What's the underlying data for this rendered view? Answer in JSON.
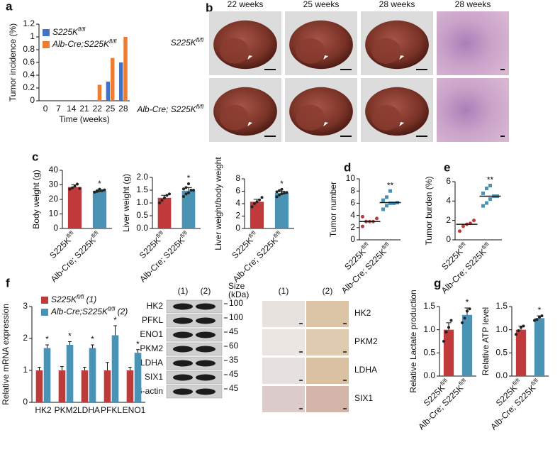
{
  "panels": [
    "a",
    "b",
    "c",
    "d",
    "e",
    "f",
    "g"
  ],
  "photos": {
    "columns": [
      "22 weeks",
      "25 weeks",
      "28 weeks",
      "28 weeks"
    ],
    "rows": [
      "S225Kfl/fl",
      "Alb-Cre; S225Kfl/fl"
    ]
  },
  "western": {
    "lanes": [
      "(1)",
      "(2)"
    ],
    "size_header": [
      "Size",
      "(kDa)"
    ],
    "bands": [
      {
        "name": "HK2",
        "size": 100
      },
      {
        "name": "PFKL",
        "size": 100
      },
      {
        "name": "ENO1",
        "size": 45
      },
      {
        "name": "PKM2",
        "size": 60
      },
      {
        "name": "LDHA",
        "size": 35
      },
      {
        "name": "SIX1",
        "size": 45
      },
      {
        "name": "β-actin",
        "size": 45
      }
    ]
  },
  "ihc": {
    "columns": [
      "(1)",
      "(2)"
    ],
    "rows": [
      "HK2",
      "PKM2",
      "LDHA",
      "SIX1"
    ]
  },
  "chart_data": [
    {
      "type": "bar",
      "ylabel": "Tumor incidence (%)",
      "xlabel": "Time (weeks)",
      "legend": "upper left",
      "categories": [
        "0",
        "7",
        "14",
        "21",
        "22",
        "25",
        "28"
      ],
      "series": [
        {
          "name": "S225Kfl/fl",
          "color": "#4472c4",
          "values": [
            0,
            0,
            0,
            0,
            0,
            0.3,
            0.6
          ]
        },
        {
          "name": "Alb-Cre;S225Kfl/fl",
          "color": "#ed7d31",
          "values": [
            0,
            0,
            0,
            0,
            0.25,
            0.67,
            1
          ]
        }
      ],
      "ylim": [
        0,
        1.2
      ],
      "yticks": [
        0,
        0.2,
        0.4,
        0.6,
        0.8,
        1,
        1.2
      ]
    },
    {
      "type": "bar",
      "ylabel": "Body weight (g)",
      "categories": [
        "S225Kfl/fl",
        "Alb-Cre; S225Kfl/fl"
      ],
      "colors": [
        "#c0393b",
        "#4a93b4"
      ],
      "values": [
        28.5,
        25.8
      ],
      "errors": [
        1.5,
        0.8
      ],
      "points": [
        [
          27,
          28,
          29,
          30.5,
          27.5
        ],
        [
          25,
          25.5,
          26,
          26,
          26.5,
          25,
          25.8,
          27
        ]
      ],
      "significance": [
        {
          "category": 1,
          "text": "*"
        }
      ],
      "ylim": [
        0,
        40
      ],
      "yticks": [
        0,
        10,
        20,
        30,
        40
      ]
    },
    {
      "type": "bar",
      "ylabel": "Liver weight (g)",
      "categories": [
        "S225Kfl/fl",
        "Alb-Cre; S225Kfl/fl"
      ],
      "colors": [
        "#c0393b",
        "#4a93b4"
      ],
      "values": [
        1.2,
        1.48
      ],
      "errors": [
        0.1,
        0.12
      ],
      "points": [
        [
          1.0,
          1.1,
          1.2,
          1.3,
          1.35
        ],
        [
          1.25,
          1.35,
          1.4,
          1.5,
          1.5,
          1.55,
          1.6,
          1.75
        ]
      ],
      "significance": [
        {
          "category": 1,
          "text": "*"
        }
      ],
      "ylim": [
        0,
        2
      ],
      "yticks": [
        {
          "value": 0,
          "label": "0.0"
        },
        {
          "value": 0.5,
          "label": "0.5"
        },
        {
          "value": 1,
          "label": "1.0"
        },
        {
          "value": 1.5,
          "label": "1.5"
        },
        {
          "value": 2,
          "label": "2.0"
        }
      ]
    },
    {
      "type": "bar",
      "ylabel": "Liver weight/body weight",
      "categories": [
        "S225Kfl/fl",
        "Alb-Cre; S225Kfl/fl"
      ],
      "colors": [
        "#c0393b",
        "#4a93b4"
      ],
      "values": [
        4.3,
        5.7
      ],
      "errors": [
        0.4,
        0.3
      ],
      "points": [
        [
          3.5,
          4,
          4.3,
          4.6,
          5
        ],
        [
          5.1,
          5.4,
          5.6,
          5.7,
          5.8,
          5.9,
          6.1,
          6.3
        ]
      ],
      "significance": [
        {
          "category": 1,
          "text": "*"
        }
      ],
      "ylim": [
        0,
        8
      ],
      "yticks": [
        0,
        2,
        4,
        6,
        8
      ]
    },
    {
      "type": "strip",
      "ylabel": "Tumor number",
      "categories": [
        "S225Kfl/fl",
        "Alb-Cre; S225Kfl/fl"
      ],
      "colors": [
        "#c0393b",
        "#4a93b4"
      ],
      "means": [
        3,
        6.1
      ],
      "points": [
        [
          2.2,
          3,
          3,
          3,
          3.5,
          3.8
        ],
        [
          5,
          5.6,
          6,
          6,
          6.1,
          6.5,
          7,
          8
        ]
      ],
      "significance": [
        {
          "category": 1,
          "text": "**"
        }
      ],
      "ylim": [
        0,
        10
      ],
      "yticks": [
        0,
        2,
        4,
        6,
        8,
        10
      ]
    },
    {
      "type": "strip",
      "ylabel": "Tumor burden (%)",
      "categories": [
        "S225Kfl/fl",
        "Alb-Cre; S225Kfl/fl"
      ],
      "colors": [
        "#c0393b",
        "#4a93b4"
      ],
      "means": [
        1.6,
        4.5
      ],
      "points": [
        [
          0.9,
          1.4,
          1.6,
          1.7,
          2.0
        ],
        [
          3.5,
          3.8,
          4.2,
          4.5,
          4.5,
          4.8,
          5.3,
          5.6
        ]
      ],
      "significance": [
        {
          "category": 1,
          "text": "**"
        }
      ],
      "ylim": [
        0,
        6
      ],
      "yticks": [
        0,
        2,
        4,
        6
      ]
    },
    {
      "type": "bar",
      "ylabel": "Relative mRNA expression",
      "legend": "upper left",
      "categories": [
        "HK2",
        "PKM2",
        "LDHA",
        "PFKL",
        "ENO1"
      ],
      "series": [
        {
          "name": "S225Kfl/fl (1)",
          "color": "#c0393b",
          "values": [
            1,
            1,
            1,
            1,
            1
          ],
          "errors": [
            0.1,
            0.12,
            0.1,
            0.25,
            0.1
          ]
        },
        {
          "name": "Alb-Cre;S225Kfl/fl (2)",
          "color": "#4a93b4",
          "values": [
            1.7,
            1.8,
            1.7,
            2.1,
            1.55
          ],
          "errors": [
            0.1,
            0.1,
            0.1,
            0.3,
            0.1
          ]
        }
      ],
      "significance": [
        {
          "category": 0,
          "text": "*"
        },
        {
          "category": 1,
          "text": "*"
        },
        {
          "category": 2,
          "text": "*"
        },
        {
          "category": 3,
          "text": "*"
        },
        {
          "category": 4,
          "text": "*"
        }
      ],
      "ylim": [
        0,
        3
      ],
      "yticks": [
        0,
        1,
        2,
        3
      ]
    },
    {
      "type": "bar",
      "ylabel": "Relative Lactate production",
      "categories": [
        "S225Kfl/fl",
        "Alb-Cre; S225Kfl/fl"
      ],
      "colors": [
        "#c0393b",
        "#4a93b4"
      ],
      "values": [
        1.0,
        1.32
      ],
      "errors": [
        0.15,
        0.15
      ],
      "points": [
        [
          0.75,
          0.95,
          1.05,
          1.2
        ],
        [
          1.15,
          1.25,
          1.4,
          1.45
        ]
      ],
      "significance": [
        {
          "category": 1,
          "text": "*"
        }
      ],
      "ylim": [
        0,
        1.5
      ],
      "yticks": [
        {
          "value": 0,
          "label": "0.0"
        },
        {
          "value": 0.5,
          "label": "0.5"
        },
        {
          "value": 1,
          "label": "1.0"
        },
        {
          "value": 1.5,
          "label": "1.5"
        }
      ]
    },
    {
      "type": "bar",
      "ylabel": "Relative ATP level",
      "categories": [
        "S225Kfl/fl",
        "Alb-Cre; S225Kfl/fl"
      ],
      "colors": [
        "#c0393b",
        "#4a93b4"
      ],
      "values": [
        1.0,
        1.25
      ],
      "errors": [
        0.08,
        0.05
      ],
      "points": [
        [
          0.9,
          0.98,
          1.05,
          1.08
        ],
        [
          1.2,
          1.22,
          1.27,
          1.3
        ]
      ],
      "significance": [
        {
          "category": 1,
          "text": "*"
        }
      ],
      "ylim": [
        0,
        1.5
      ],
      "yticks": [
        {
          "value": 0,
          "label": "0.0"
        },
        {
          "value": 0.5,
          "label": "0.5"
        },
        {
          "value": 1,
          "label": "1.0"
        },
        {
          "value": 1.5,
          "label": "1.5"
        }
      ]
    }
  ]
}
